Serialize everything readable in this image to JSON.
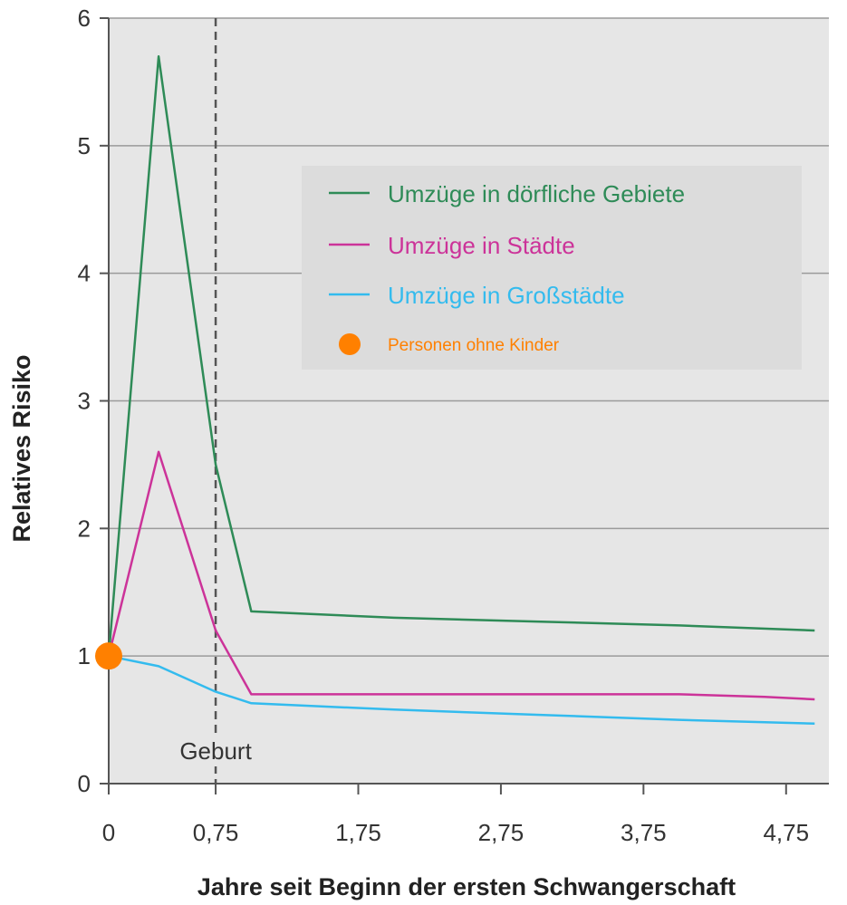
{
  "chart_data": {
    "type": "line",
    "title": "",
    "xlabel": "Jahre seit Beginn der ersten Schwangerschaft",
    "ylabel": "Relatives Risiko",
    "xlim": [
      0,
      5.05
    ],
    "ylim": [
      0,
      6
    ],
    "x_ticks": [
      0,
      0.75,
      1.75,
      2.75,
      3.75,
      4.75
    ],
    "x_tick_labels": [
      "0",
      "0,75",
      "1,75",
      "2,75",
      "3,75",
      "4,75"
    ],
    "y_ticks": [
      0,
      1,
      2,
      3,
      4,
      5,
      6
    ],
    "y_tick_labels": [
      "0",
      "1",
      "2",
      "3",
      "4",
      "5",
      "6"
    ],
    "grid": "horizontal",
    "legend_position": "top-right",
    "annotation": {
      "text": "Geburt",
      "x": 0.75
    },
    "series": [
      {
        "name": "Umzüge in dörfliche Gebiete",
        "color": "#2e8b57",
        "x": [
          0,
          0.35,
          0.75,
          1.0,
          2.0,
          3.0,
          4.0,
          4.95
        ],
        "y": [
          1.0,
          5.7,
          2.5,
          1.35,
          1.3,
          1.27,
          1.24,
          1.2
        ]
      },
      {
        "name": "Umzüge in Städte",
        "color": "#cc3399",
        "x": [
          0,
          0.35,
          0.75,
          1.0,
          2.0,
          3.0,
          4.0,
          4.6,
          4.95
        ],
        "y": [
          1.0,
          2.6,
          1.2,
          0.7,
          0.7,
          0.7,
          0.7,
          0.68,
          0.66
        ]
      },
      {
        "name": "Umzüge in Großstädte",
        "color": "#33bbee",
        "x": [
          0,
          0.35,
          0.75,
          1.0,
          2.0,
          3.0,
          4.0,
          4.95
        ],
        "y": [
          1.0,
          0.92,
          0.72,
          0.63,
          0.58,
          0.54,
          0.5,
          0.47
        ]
      }
    ],
    "reference_point": {
      "name": "Personen ohne Kinder",
      "color": "#ff8000",
      "x": 0,
      "y": 1
    }
  }
}
